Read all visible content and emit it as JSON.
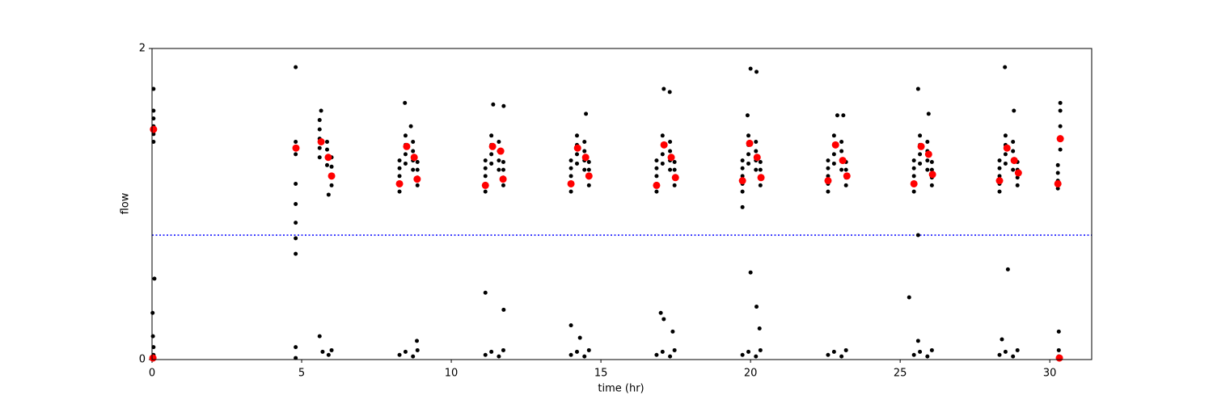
{
  "chart_data": {
    "type": "scatter",
    "xlabel": "time (hr)",
    "ylabel": "flow",
    "xlim": [
      0,
      31.4
    ],
    "ylim": [
      0,
      2
    ],
    "xticks": [
      0,
      5,
      10,
      15,
      20,
      25,
      30
    ],
    "yticks": [
      0,
      2
    ],
    "hline": 0.8,
    "hline_color": "#0000ff",
    "series": [
      {
        "color": "#000000",
        "x": [
          0.05,
          0.05,
          0.05,
          0.05,
          0.05,
          0.05,
          0.08,
          0.02,
          0.03,
          0.05,
          0.05,
          4.8,
          4.8,
          4.8,
          4.8,
          4.8,
          4.8,
          4.8,
          4.8,
          4.8,
          4.8,
          5.6,
          5.6,
          5.6,
          5.6,
          5.6,
          5.85,
          5.85,
          5.85,
          5.85,
          6.0,
          6.0,
          6.0,
          6.0,
          5.65,
          5.9,
          5.6,
          5.7,
          5.9,
          6.0,
          8.27,
          8.27,
          8.27,
          8.27,
          8.27,
          8.47,
          8.47,
          8.47,
          8.47,
          8.72,
          8.72,
          8.72,
          8.72,
          8.87,
          8.87,
          8.87,
          8.87,
          8.27,
          8.47,
          8.72,
          8.87,
          8.45,
          8.65,
          8.85,
          11.14,
          11.14,
          11.14,
          11.14,
          11.14,
          11.34,
          11.34,
          11.34,
          11.34,
          11.59,
          11.59,
          11.59,
          11.59,
          11.74,
          11.74,
          11.74,
          11.74,
          11.14,
          11.34,
          11.59,
          11.74,
          11.4,
          11.75,
          11.14,
          11.75,
          14.0,
          14.0,
          14.0,
          14.0,
          14.0,
          14.2,
          14.2,
          14.2,
          14.2,
          14.45,
          14.45,
          14.45,
          14.45,
          14.6,
          14.6,
          14.6,
          14.6,
          14.0,
          14.2,
          14.45,
          14.6,
          14.5,
          14.0,
          14.3,
          16.86,
          16.86,
          16.86,
          16.86,
          16.86,
          17.06,
          17.06,
          17.06,
          17.06,
          17.31,
          17.31,
          17.31,
          17.31,
          17.46,
          17.46,
          17.46,
          17.46,
          16.86,
          17.06,
          17.31,
          17.46,
          17.1,
          17.3,
          17.0,
          17.1,
          17.4,
          19.73,
          19.73,
          19.73,
          19.73,
          19.73,
          19.93,
          19.93,
          19.93,
          19.93,
          20.18,
          20.18,
          20.18,
          20.18,
          20.33,
          20.33,
          20.33,
          20.33,
          19.73,
          19.93,
          20.18,
          20.33,
          20.0,
          20.2,
          19.73,
          19.9,
          20.0,
          20.2,
          20.3,
          22.59,
          22.59,
          22.59,
          22.59,
          22.59,
          22.79,
          22.79,
          22.79,
          22.79,
          23.04,
          23.04,
          23.04,
          23.04,
          23.19,
          23.19,
          23.19,
          23.19,
          22.59,
          22.79,
          23.04,
          23.19,
          22.9,
          23.1,
          25.46,
          25.46,
          25.46,
          25.46,
          25.46,
          25.66,
          25.66,
          25.66,
          25.66,
          25.91,
          25.91,
          25.91,
          25.91,
          26.06,
          26.06,
          26.06,
          26.06,
          25.46,
          25.66,
          25.91,
          26.06,
          25.6,
          25.95,
          25.3,
          25.6,
          25.6,
          28.32,
          28.32,
          28.32,
          28.32,
          28.32,
          28.52,
          28.52,
          28.52,
          28.52,
          28.77,
          28.77,
          28.77,
          28.77,
          28.92,
          28.92,
          28.92,
          28.92,
          28.32,
          28.52,
          28.77,
          28.92,
          28.5,
          28.8,
          28.6,
          28.4,
          30.27,
          30.27,
          30.27,
          30.27,
          30.35,
          30.35,
          30.35,
          30.35,
          30.35,
          30.3,
          30.3,
          30.3
        ],
        "values": [
          1.4,
          1.45,
          1.5,
          1.55,
          1.6,
          1.74,
          0.52,
          0.3,
          0.15,
          0.08,
          0.03,
          1.88,
          1.4,
          1.32,
          1.13,
          1.0,
          0.88,
          0.78,
          0.68,
          0.08,
          0.01,
          1.3,
          1.36,
          1.42,
          1.48,
          1.54,
          1.25,
          1.3,
          1.35,
          1.4,
          1.12,
          1.18,
          1.24,
          1.3,
          1.6,
          1.06,
          0.15,
          0.05,
          0.03,
          0.06,
          1.08,
          1.13,
          1.18,
          1.23,
          1.28,
          1.26,
          1.32,
          1.38,
          1.44,
          1.22,
          1.28,
          1.34,
          1.4,
          1.12,
          1.17,
          1.22,
          1.27,
          0.03,
          0.05,
          0.02,
          0.06,
          1.65,
          1.5,
          0.12,
          1.08,
          1.13,
          1.18,
          1.23,
          1.28,
          1.26,
          1.32,
          1.38,
          1.44,
          1.22,
          1.28,
          1.34,
          1.4,
          1.12,
          1.17,
          1.22,
          1.27,
          0.03,
          0.05,
          0.02,
          0.06,
          1.64,
          1.63,
          0.43,
          0.32,
          1.08,
          1.13,
          1.18,
          1.23,
          1.28,
          1.26,
          1.32,
          1.38,
          1.44,
          1.22,
          1.28,
          1.34,
          1.4,
          1.12,
          1.17,
          1.22,
          1.27,
          0.03,
          0.05,
          0.02,
          0.06,
          1.58,
          0.22,
          0.14,
          1.08,
          1.13,
          1.18,
          1.23,
          1.28,
          1.26,
          1.32,
          1.38,
          1.44,
          1.22,
          1.28,
          1.34,
          1.4,
          1.12,
          1.17,
          1.22,
          1.27,
          0.03,
          0.05,
          0.02,
          0.06,
          1.74,
          1.72,
          0.3,
          0.26,
          0.18,
          1.08,
          1.13,
          1.18,
          1.23,
          1.28,
          1.26,
          1.32,
          1.38,
          1.44,
          1.22,
          1.28,
          1.34,
          1.4,
          1.12,
          1.17,
          1.22,
          1.27,
          0.03,
          0.05,
          0.02,
          0.06,
          1.87,
          1.85,
          0.98,
          1.57,
          0.56,
          0.34,
          0.2,
          1.08,
          1.13,
          1.18,
          1.23,
          1.28,
          1.26,
          1.32,
          1.38,
          1.44,
          1.22,
          1.28,
          1.34,
          1.4,
          1.12,
          1.17,
          1.22,
          1.27,
          0.03,
          0.05,
          0.02,
          0.06,
          1.57,
          1.57,
          1.08,
          1.13,
          1.18,
          1.23,
          1.28,
          1.26,
          1.32,
          1.38,
          1.44,
          1.22,
          1.28,
          1.34,
          1.4,
          1.12,
          1.17,
          1.22,
          1.27,
          0.03,
          0.05,
          0.02,
          0.06,
          1.74,
          1.58,
          0.4,
          0.8,
          0.12,
          1.08,
          1.13,
          1.18,
          1.23,
          1.28,
          1.26,
          1.32,
          1.38,
          1.44,
          1.22,
          1.28,
          1.34,
          1.4,
          1.12,
          1.17,
          1.22,
          1.27,
          0.03,
          0.05,
          0.02,
          0.06,
          1.88,
          1.6,
          0.58,
          0.13,
          1.1,
          1.15,
          1.2,
          1.25,
          1.35,
          1.42,
          1.5,
          1.6,
          1.65,
          0.18,
          0.06,
          0.02
        ],
        "size": 2.5
      },
      {
        "color": "#ff0000",
        "x": [
          0.05,
          0.03,
          4.81,
          5.65,
          5.89,
          6.0,
          8.27,
          8.51,
          8.76,
          8.86,
          11.14,
          11.38,
          11.65,
          11.73,
          14.0,
          14.22,
          14.49,
          14.6,
          16.86,
          17.11,
          17.35,
          17.49,
          19.73,
          19.97,
          20.22,
          20.35,
          22.59,
          22.84,
          23.08,
          23.22,
          25.46,
          25.7,
          25.95,
          26.08,
          28.32,
          28.57,
          28.81,
          28.95,
          30.27,
          30.35,
          30.32
        ],
        "values": [
          1.48,
          0.01,
          1.36,
          1.4,
          1.3,
          1.18,
          1.13,
          1.37,
          1.3,
          1.16,
          1.12,
          1.37,
          1.34,
          1.16,
          1.13,
          1.36,
          1.3,
          1.18,
          1.12,
          1.38,
          1.3,
          1.17,
          1.15,
          1.39,
          1.3,
          1.17,
          1.15,
          1.38,
          1.28,
          1.18,
          1.13,
          1.37,
          1.32,
          1.19,
          1.15,
          1.36,
          1.28,
          1.2,
          1.13,
          1.42,
          0.01
        ],
        "size": 4.5
      }
    ]
  }
}
